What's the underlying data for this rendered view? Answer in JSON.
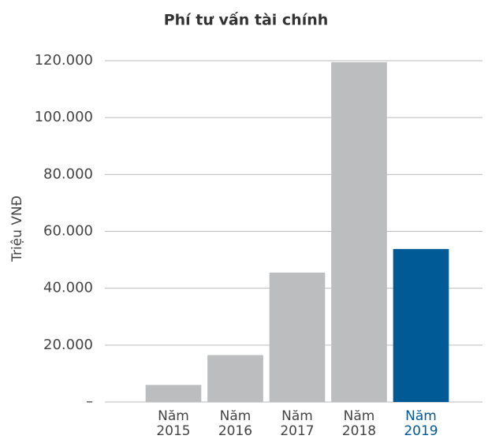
{
  "chart_data": {
    "type": "bar",
    "title": "Phí tư vấn tài chính",
    "y_label": "Triệu VNĐ",
    "categories": [
      "Năm 2015",
      "Năm 2016",
      "Năm 2017",
      "Năm 2018",
      "Năm 2019"
    ],
    "values": [
      6000,
      16500,
      45500,
      119500,
      53800
    ],
    "colors": [
      "#bcbdbf",
      "#bcbdbf",
      "#bcbdbf",
      "#bcbdbf",
      "#005a96"
    ],
    "ylim": [
      0,
      120000
    ],
    "yticks": [
      {
        "value": 0,
        "label": "–"
      },
      {
        "value": 20000,
        "label": "20.000"
      },
      {
        "value": 40000,
        "label": "40.000"
      },
      {
        "value": 60000,
        "label": "60.000"
      },
      {
        "value": 80000,
        "label": "80.000"
      },
      {
        "value": 100000,
        "label": "100.000"
      },
      {
        "value": 120000,
        "label": "120.000"
      }
    ],
    "grid": true
  }
}
